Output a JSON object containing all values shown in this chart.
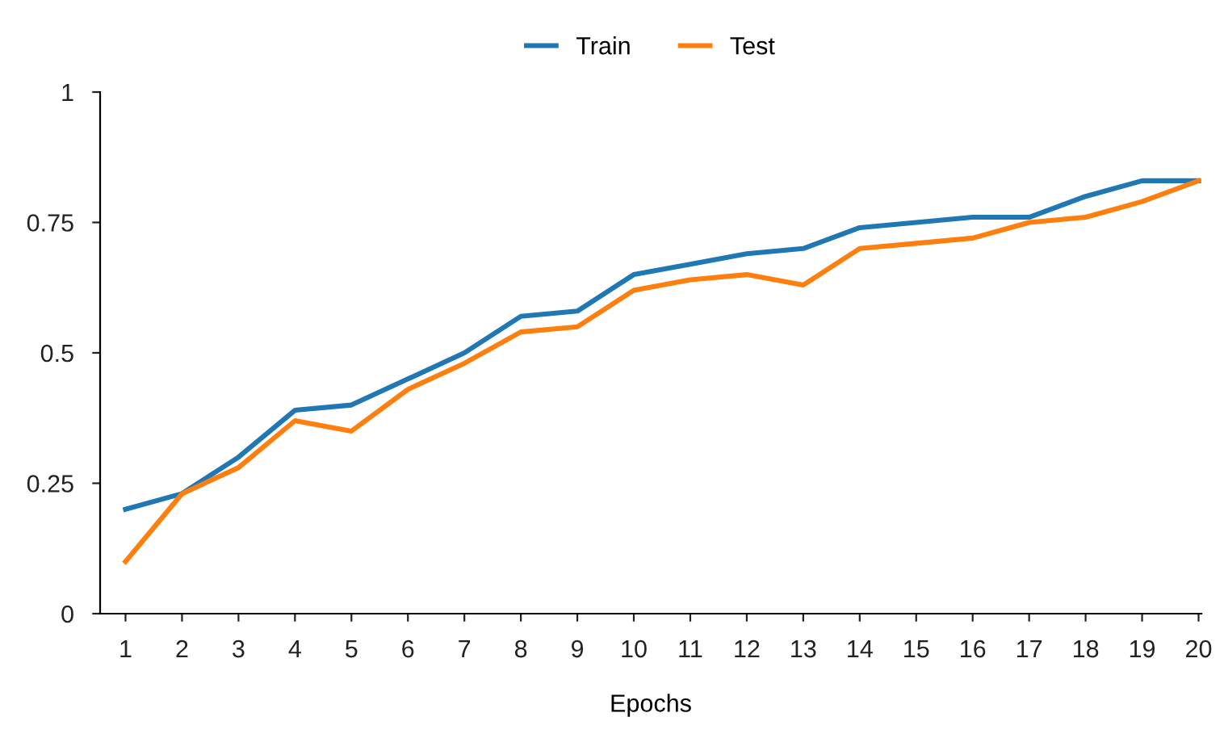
{
  "chart_data": {
    "type": "line",
    "xlabel": "Epochs",
    "categories": [
      "1",
      "2",
      "3",
      "4",
      "5",
      "6",
      "7",
      "8",
      "9",
      "10",
      "11",
      "12",
      "13",
      "14",
      "15",
      "16",
      "17",
      "18",
      "19",
      "20"
    ],
    "series": [
      {
        "name": "Train",
        "color": "#1f77b4",
        "values": [
          0.2,
          0.23,
          0.3,
          0.39,
          0.4,
          0.45,
          0.5,
          0.57,
          0.58,
          0.65,
          0.67,
          0.69,
          0.7,
          0.74,
          0.75,
          0.76,
          0.76,
          0.8,
          0.83,
          0.83
        ]
      },
      {
        "name": "Test",
        "color": "#ff7f0e",
        "values": [
          0.1,
          0.23,
          0.28,
          0.37,
          0.35,
          0.43,
          0.48,
          0.54,
          0.55,
          0.62,
          0.64,
          0.65,
          0.63,
          0.7,
          0.71,
          0.72,
          0.75,
          0.76,
          0.79,
          0.83
        ]
      }
    ],
    "ylim": [
      0,
      1
    ],
    "yticks": [
      0,
      0.25,
      0.5,
      0.75,
      1
    ],
    "grid": false,
    "legend": "top",
    "marker": "none",
    "line_style": "solid"
  }
}
